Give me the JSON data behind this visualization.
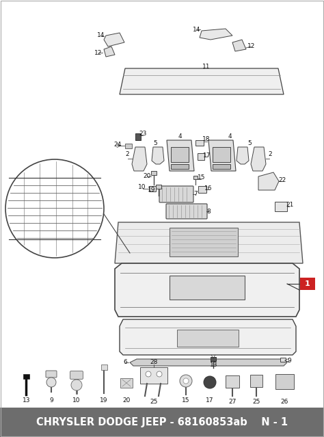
{
  "footer_text": "CHRYSLER DODGE JEEP - 68160853ab    N - 1",
  "footer_bg": "#6d6d6d",
  "footer_text_color": "#ffffff",
  "footer_fontsize": 10.5,
  "background_color": "#ffffff",
  "border_color": "#999999",
  "label_1_bg": "#cc2222",
  "label_1_text": "1",
  "label_1_text_color": "#ffffff",
  "figsize": [
    4.74,
    6.39
  ],
  "dpi": 100,
  "line_color": "#444444",
  "part_fill": "#f2f2f2",
  "part_edge": "#555555",
  "label_fontsize": 6.5
}
